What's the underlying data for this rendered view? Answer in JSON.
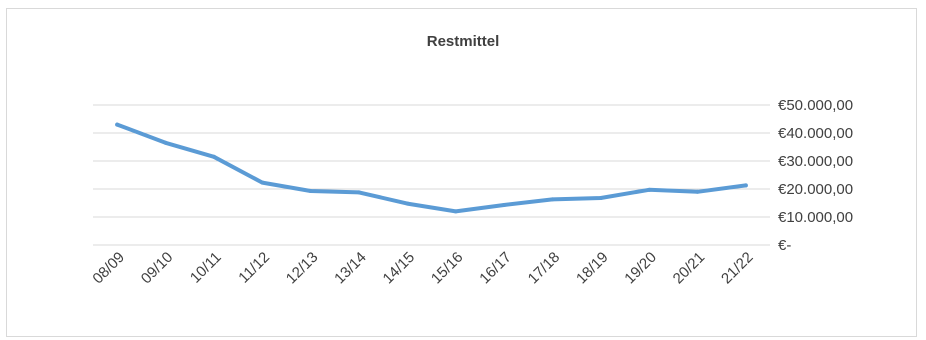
{
  "chart_data": {
    "type": "line",
    "title": "Restmittel",
    "xlabel": "",
    "ylabel": "",
    "categories": [
      "08/09",
      "09/10",
      "10/11",
      "11/12",
      "12/13",
      "13/14",
      "14/15",
      "15/16",
      "16/17",
      "17/18",
      "18/19",
      "19/20",
      "20/21",
      "21/22"
    ],
    "series": [
      {
        "values": [
          43000,
          36500,
          31500,
          22300,
          19300,
          18800,
          14800,
          12000,
          14300,
          16300,
          16800,
          19700,
          19000,
          21300
        ]
      }
    ],
    "y_tick_labels": [
      "€-",
      "€10.000,00",
      "€20.000,00",
      "€30.000,00",
      "€40.000,00",
      "€50.000,00"
    ],
    "y_ticks": [
      0,
      10000,
      20000,
      30000,
      40000,
      50000
    ],
    "ylim": [
      0,
      50000
    ],
    "grid": true,
    "y_axis_side": "right",
    "line_color": "#5b9bd5",
    "grid_color": "#d9d9d9"
  }
}
